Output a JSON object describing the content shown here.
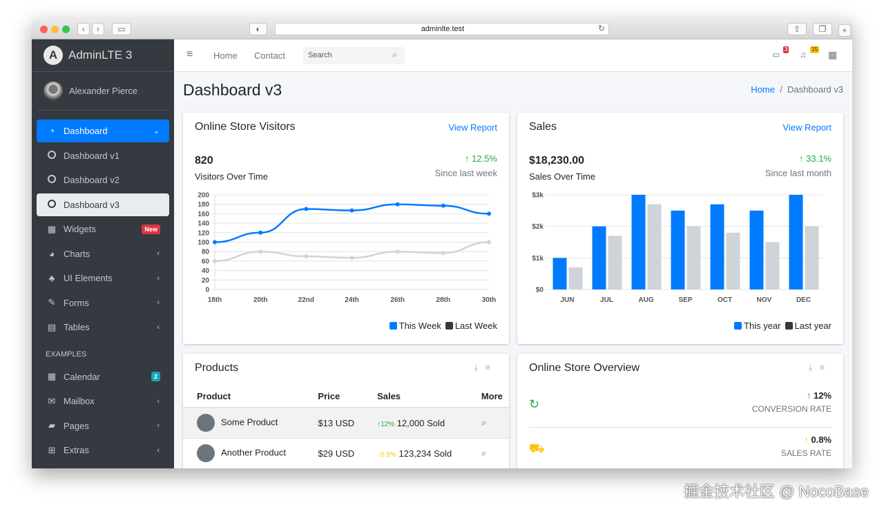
{
  "browser": {
    "url": "adminlte.test"
  },
  "sidebar": {
    "brand": "AdminLTE 3",
    "user": "Alexander Pierce",
    "items": [
      {
        "label": "Dashboard",
        "icon": "tachometer-icon"
      },
      {
        "label": "Dashboard v1"
      },
      {
        "label": "Dashboard v2"
      },
      {
        "label": "Dashboard v3"
      },
      {
        "label": "Widgets",
        "badge": "New"
      },
      {
        "label": "Charts"
      },
      {
        "label": "UI Elements"
      },
      {
        "label": "Forms"
      },
      {
        "label": "Tables"
      }
    ],
    "section": "EXAMPLES",
    "examples": [
      {
        "label": "Calendar",
        "badge": "2"
      },
      {
        "label": "Mailbox"
      },
      {
        "label": "Pages"
      },
      {
        "label": "Extras"
      }
    ]
  },
  "topnav": {
    "home": "Home",
    "contact": "Contact",
    "search_placeholder": "Search",
    "messages_count": "3",
    "notifications_count": "15"
  },
  "page": {
    "title": "Dashboard v3",
    "breadcrumb": [
      "Home",
      "Dashboard v3"
    ]
  },
  "visitors": {
    "title": "Online Store Visitors",
    "link": "View Report",
    "value": "820",
    "subtitle": "Visitors Over Time",
    "change": "12.5%",
    "since": "Since last week"
  },
  "sales": {
    "title": "Sales",
    "link": "View Report",
    "value": "$18,230.00",
    "subtitle": "Sales Over Time",
    "change": "33.1%",
    "since": "Since last month"
  },
  "chart_data": [
    {
      "type": "line",
      "categories": [
        "18th",
        "20th",
        "22nd",
        "24th",
        "26th",
        "28th",
        "30th"
      ],
      "ylim": [
        0,
        200
      ],
      "yticks": [
        "0",
        "20",
        "40",
        "60",
        "80",
        "100",
        "120",
        "140",
        "160",
        "180",
        "200"
      ],
      "grid": true,
      "legend": "bottom-right",
      "series": [
        {
          "name": "This Week",
          "color": "#007bff",
          "values": [
            100,
            120,
            170,
            167,
            180,
            177,
            160
          ]
        },
        {
          "name": "Last Week",
          "color": "#ced4da",
          "legend_color": "#343a40",
          "values": [
            60,
            80,
            70,
            67,
            80,
            77,
            100
          ]
        }
      ]
    },
    {
      "type": "bar",
      "categories": [
        "JUN",
        "JUL",
        "AUG",
        "SEP",
        "OCT",
        "NOV",
        "DEC"
      ],
      "ylim": [
        0,
        3000
      ],
      "yticks": [
        "$0",
        "$1k",
        "$2k",
        "$3k"
      ],
      "grid": true,
      "legend": "bottom-right",
      "series": [
        {
          "name": "This year",
          "color": "#007bff",
          "values": [
            1000,
            2000,
            3000,
            2500,
            2700,
            2500,
            3000
          ]
        },
        {
          "name": "Last year",
          "color": "#ced4da",
          "legend_color": "#343a40",
          "values": [
            700,
            1700,
            2700,
            2000,
            1800,
            1500,
            2000
          ]
        }
      ]
    }
  ],
  "products": {
    "title": "Products",
    "headers": [
      "Product",
      "Price",
      "Sales",
      "More"
    ],
    "rows": [
      {
        "name": "Some Product",
        "price": "$13 USD",
        "change": "12%",
        "dir": "up",
        "sold": "12,000 Sold"
      },
      {
        "name": "Another Product",
        "price": "$29 USD",
        "change": "0.5%",
        "dir": "down",
        "sold": "123,234 Sold"
      }
    ]
  },
  "overview": {
    "title": "Online Store Overview",
    "items": [
      {
        "value": "12%",
        "label": "CONVERSION RATE",
        "color": "#28a745"
      },
      {
        "value": "0.8%",
        "label": "SALES RATE",
        "color": "#ffc107"
      }
    ]
  },
  "watermark": "掘金技术社区 @ NocoBase"
}
